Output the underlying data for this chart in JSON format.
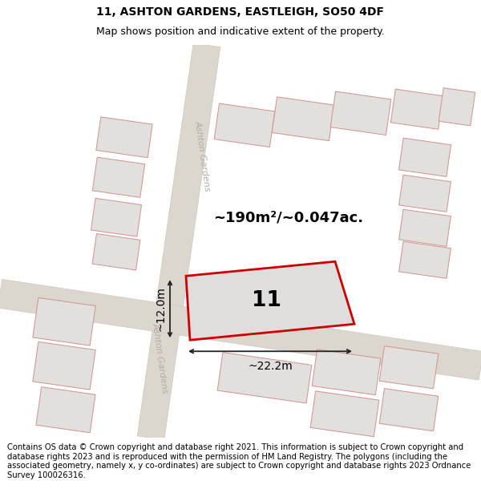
{
  "title": "11, ASHTON GARDENS, EASTLEIGH, SO50 4DF",
  "subtitle": "Map shows position and indicative extent of the property.",
  "footer": "Contains OS data © Crown copyright and database right 2021. This information is subject to Crown copyright and database rights 2023 and is reproduced with the permission of HM Land Registry. The polygons (including the associated geometry, namely x, y co-ordinates) are subject to Crown copyright and database rights 2023 Ordnance Survey 100026316.",
  "title_fontsize": 10,
  "subtitle_fontsize": 9,
  "footer_fontsize": 7.2,
  "road_label_1": "Ashton Gardens",
  "road_label_2": "Ashton Gardens",
  "area_text": "~190m²/~0.047ac.",
  "width_text": "~22.2m",
  "height_text": "~12.0m",
  "plot_number": "11",
  "map_bg": "#eeece8",
  "plot_fill": "#e0dedd",
  "plot_edge": "#cc0000",
  "dim_color": "#222222",
  "road_color": "#dbd7cf",
  "road_edge": "#ccc8c0",
  "bld_fill": "#e2e0dc",
  "bld_edge": "#d09090",
  "road_label_color": "#b0aca4"
}
